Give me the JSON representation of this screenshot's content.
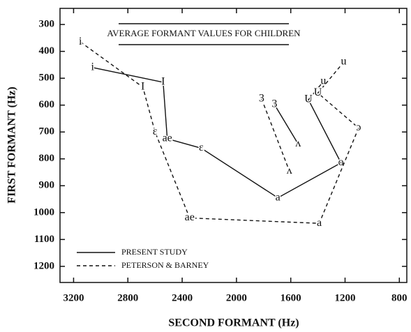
{
  "chart_data": {
    "type": "line",
    "title": "AVERAGE FORMANT VALUES FOR CHILDREN",
    "x_label": "SECOND FORMANT (Hz)",
    "y_label": "FIRST FORMANT (Hz)",
    "xlim": [
      3300,
      745
    ],
    "ylim": [
      1260,
      240
    ],
    "xticks": [
      3200,
      2800,
      2400,
      2000,
      1600,
      1200,
      800
    ],
    "yticks": [
      300,
      400,
      500,
      600,
      700,
      800,
      900,
      1000,
      1100,
      1200
    ],
    "grid": false,
    "legend": "lower left",
    "series": [
      {
        "name": "PRESENT STUDY",
        "color": "#111111",
        "dash": "solid",
        "x": [
          3060,
          2540,
          2510,
          2260,
          1695,
          1230,
          1470,
          1360,
          null,
          1720,
          1545
        ],
        "values": [
          460,
          515,
          725,
          760,
          945,
          815,
          580,
          512,
          null,
          598,
          745
        ],
        "point_labels": [
          "i",
          "I",
          "ae",
          "ɛ",
          "a",
          "o",
          "U",
          "u",
          null,
          "3",
          "ʌ"
        ]
      },
      {
        "name": "PETERSON & BARNEY",
        "color": "#111111",
        "dash": "dashed",
        "x": [
          3150,
          2690,
          2600,
          2345,
          1390,
          1100,
          1400,
          1210,
          null,
          1815,
          1610
        ],
        "values": [
          365,
          533,
          700,
          1020,
          1040,
          685,
          555,
          440,
          null,
          577,
          845
        ],
        "point_labels": [
          "i",
          "I",
          "ɛ",
          "ae",
          "a",
          "ɔ",
          "U",
          "u",
          null,
          "3",
          "ʌ"
        ]
      }
    ]
  }
}
